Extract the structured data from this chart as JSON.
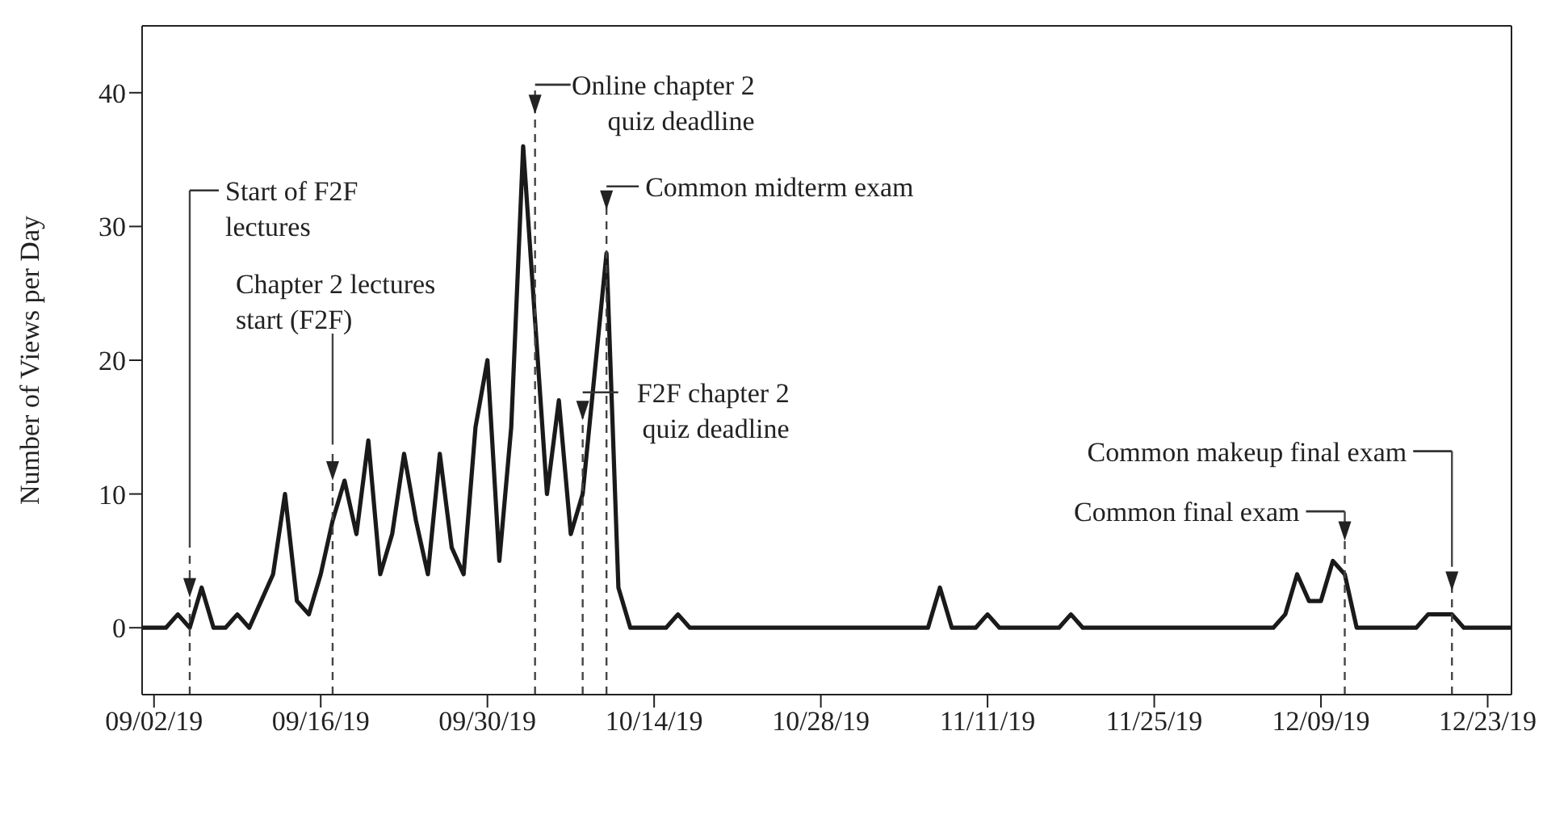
{
  "chart_data": {
    "type": "line",
    "ylabel": "Number of Views per Day",
    "xlim": [
      "--09-01",
      "--12-25"
    ],
    "xticks": [
      {
        "value": "--09-02",
        "label": "09/02/19"
      },
      {
        "value": "--09-16",
        "label": "09/16/19"
      },
      {
        "value": "--09-30",
        "label": "09/30/19"
      },
      {
        "value": "--10-14",
        "label": "10/14/19"
      },
      {
        "value": "--10-28",
        "label": "10/28/19"
      },
      {
        "value": "--11-11",
        "label": "11/11/19"
      },
      {
        "value": "--11-25",
        "label": "11/25/19"
      },
      {
        "value": "--12-09",
        "label": "12/09/19"
      },
      {
        "value": "--12-23",
        "label": "12/23/19"
      }
    ],
    "ylim": [
      -5,
      45
    ],
    "yticks": [
      0,
      10,
      20,
      30,
      40
    ],
    "marker": "none",
    "line_style": "solid",
    "series": [
      {
        "color": "#1a1a1a",
        "x": [
          "--09-01",
          "--09-03",
          "--09-04",
          "--09-05",
          "--09-06",
          "--09-07",
          "--09-08",
          "--09-09",
          "--09-10",
          "--09-11",
          "--09-12",
          "--09-13",
          "--09-14",
          "--09-15",
          "--09-16",
          "--09-17",
          "--09-18",
          "--09-19",
          "--09-20",
          "--09-21",
          "--09-22",
          "--09-23",
          "--09-24",
          "--09-25",
          "--09-26",
          "--09-27",
          "--09-28",
          "--09-29",
          "--09-30",
          "--10-01",
          "--10-02",
          "--10-03",
          "--10-04",
          "--10-05",
          "--10-06",
          "--10-07",
          "--10-08",
          "--10-09",
          "--10-10",
          "--10-11",
          "--10-12",
          "--10-15",
          "--10-16",
          "--10-17",
          "--11-06",
          "--11-07",
          "--11-08",
          "--11-10",
          "--11-11",
          "--11-12",
          "--11-17",
          "--11-18",
          "--11-19",
          "--12-05",
          "--12-06",
          "--12-07",
          "--12-08",
          "--12-09",
          "--12-10",
          "--12-11",
          "--12-12",
          "--12-17",
          "--12-18",
          "--12-20",
          "--12-21",
          "--12-25"
        ],
        "values": [
          0,
          0,
          1,
          0,
          3,
          0,
          0,
          1,
          0,
          2,
          4,
          10,
          2,
          1,
          4,
          8,
          11,
          7,
          14,
          4,
          7,
          13,
          8,
          4,
          13,
          6,
          4,
          15,
          20,
          5,
          15,
          36,
          23,
          10,
          17,
          7,
          10,
          19,
          28,
          3,
          0,
          0,
          1,
          0,
          0,
          3,
          0,
          0,
          1,
          0,
          0,
          1,
          0,
          0,
          1,
          4,
          2,
          2,
          5,
          4,
          0,
          0,
          1,
          1,
          0,
          0
        ]
      }
    ],
    "ref_lines": [
      {
        "axis": "x",
        "value": "--09-05",
        "label": "Start of F2F\nlectures",
        "line_style": "dashed"
      },
      {
        "axis": "x",
        "value": "--09-17",
        "label": "Chapter 2 lectures\nstart (F2F)",
        "line_style": "dashed"
      },
      {
        "axis": "x",
        "value": "--10-04",
        "label": "Online chapter 2\nquiz deadline",
        "line_style": "dashed"
      },
      {
        "axis": "x",
        "value": "--10-10",
        "label": "Common midterm exam",
        "line_style": "dashed"
      },
      {
        "axis": "x",
        "value": "--10-08",
        "label": "F2F chapter 2\nquiz deadline",
        "line_style": "dashed"
      },
      {
        "axis": "x",
        "value": "--12-11",
        "label": "Common final exam",
        "line_style": "dashed"
      },
      {
        "axis": "x",
        "value": "--12-20",
        "label": "Common makeup final exam",
        "line_style": "dashed"
      }
    ]
  }
}
